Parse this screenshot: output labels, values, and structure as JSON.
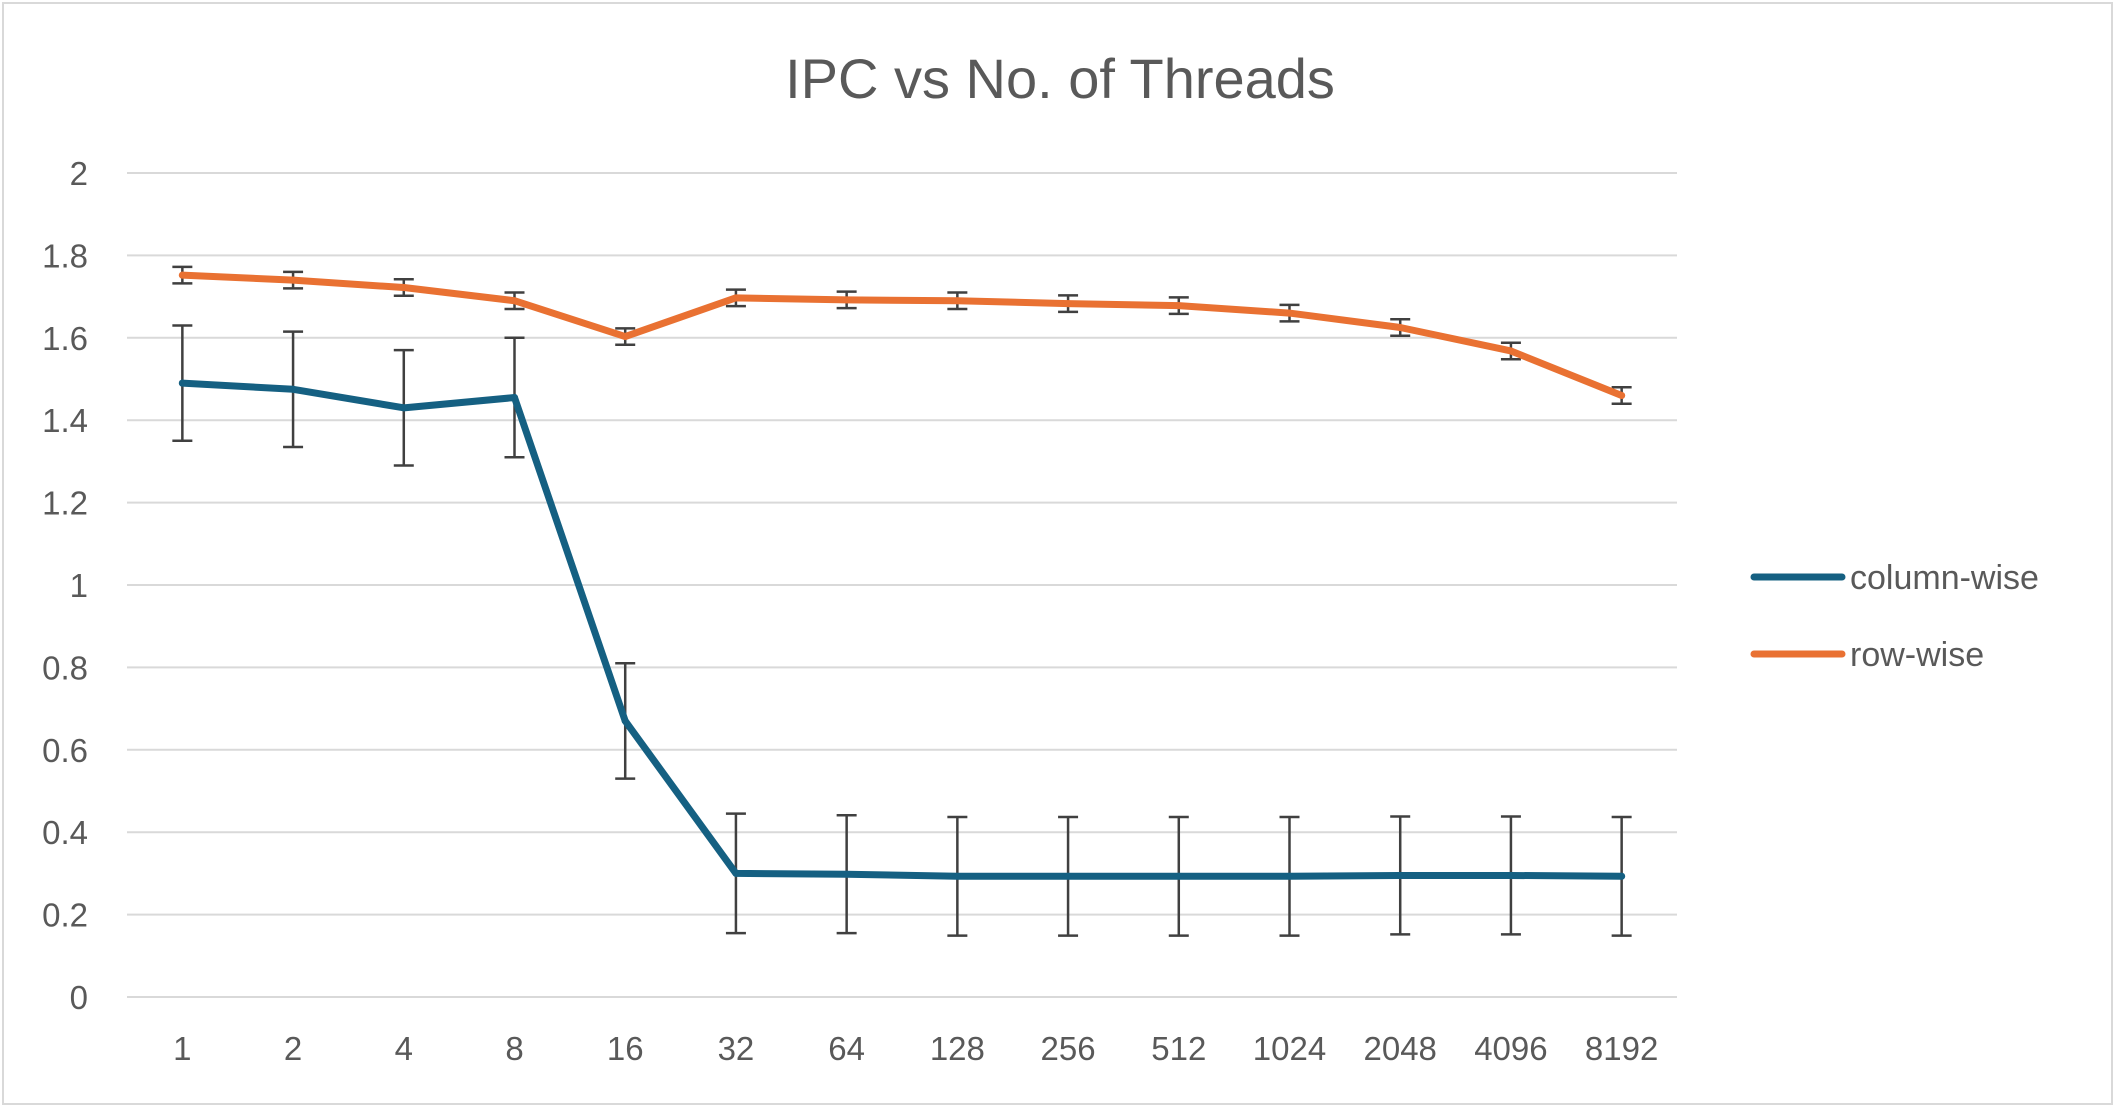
{
  "chart_data": {
    "type": "line",
    "title": "IPC vs No. of Threads",
    "xlabel": "",
    "ylabel": "",
    "categories": [
      "1",
      "2",
      "4",
      "8",
      "16",
      "32",
      "64",
      "128",
      "256",
      "512",
      "1024",
      "2048",
      "4096",
      "8192"
    ],
    "y_ticks": [
      "0",
      "0.2",
      "0.4",
      "0.6",
      "0.8",
      "1",
      "1.2",
      "1.4",
      "1.6",
      "1.8",
      "2"
    ],
    "ylim": [
      0,
      2
    ],
    "grid": true,
    "legend_position": "right",
    "series": [
      {
        "name": "column-wise",
        "color": "#156082",
        "values": [
          1.49,
          1.475,
          1.43,
          1.455,
          0.67,
          0.3,
          0.298,
          0.293,
          0.293,
          0.293,
          0.293,
          0.295,
          0.295,
          0.293
        ],
        "error": [
          0.14,
          0.14,
          0.14,
          0.145,
          0.14,
          0.145,
          0.143,
          0.144,
          0.144,
          0.144,
          0.144,
          0.143,
          0.143,
          0.144
        ]
      },
      {
        "name": "row-wise",
        "color": "#E97132",
        "values": [
          1.752,
          1.74,
          1.722,
          1.69,
          1.603,
          1.697,
          1.692,
          1.69,
          1.683,
          1.678,
          1.66,
          1.625,
          1.568,
          1.46
        ],
        "error": [
          0.02,
          0.02,
          0.02,
          0.02,
          0.02,
          0.02,
          0.02,
          0.02,
          0.02,
          0.02,
          0.02,
          0.02,
          0.02,
          0.02
        ]
      }
    ]
  }
}
